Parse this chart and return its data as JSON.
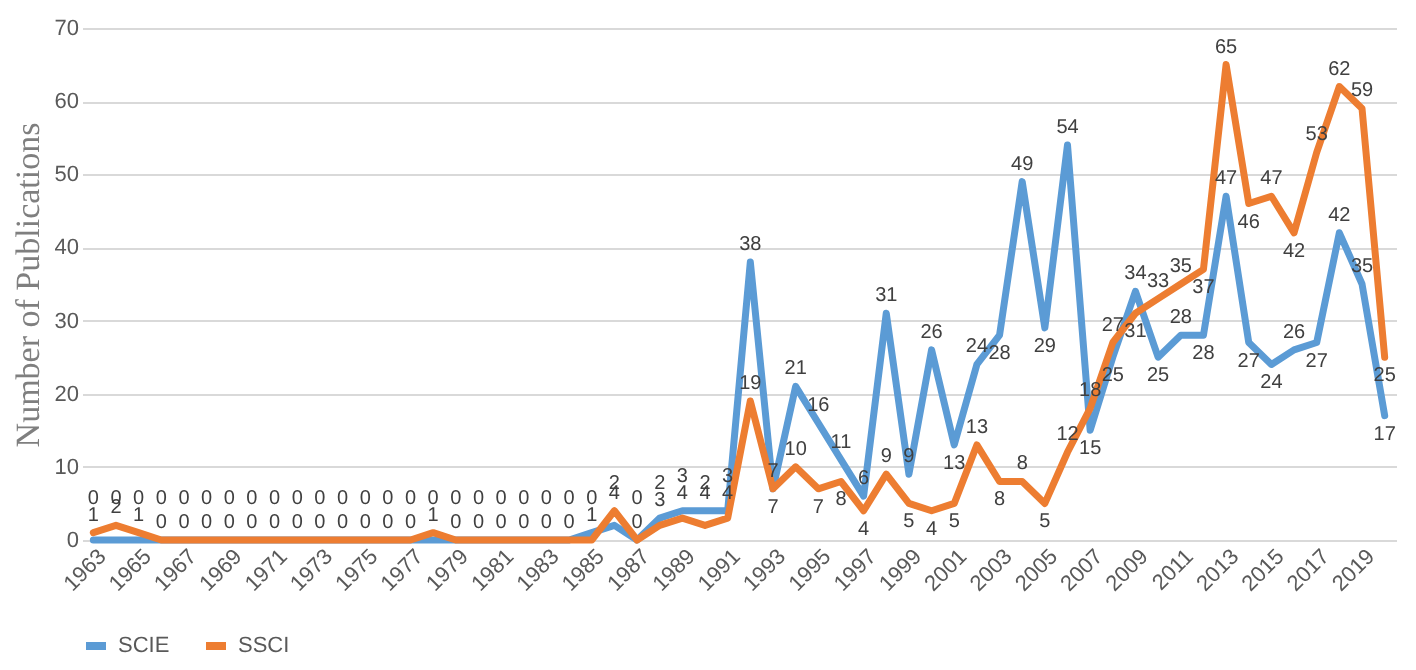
{
  "chart_data": {
    "type": "line",
    "ylabel": "Number of Publications",
    "categories": [
      "1963",
      null,
      "1965",
      null,
      "1967",
      null,
      "1969",
      null,
      "1971",
      null,
      "1973",
      null,
      "1975",
      null,
      "1977",
      null,
      "1979",
      null,
      "1981",
      null,
      "1983",
      null,
      "1985",
      null,
      "1987",
      null,
      "1989",
      null,
      "1991",
      null,
      "1993",
      null,
      "1995",
      null,
      "1997",
      null,
      "1999",
      null,
      "2001",
      null,
      "2003",
      null,
      "2005",
      null,
      "2007",
      null,
      "2009",
      null,
      "2011",
      null,
      "2013",
      null,
      "2015",
      null,
      "2017",
      null,
      "2019",
      null
    ],
    "series": [
      {
        "name": "SCIE",
        "color": "#5b9bd5",
        "values": [
          0,
          0,
          0,
          0,
          0,
          0,
          0,
          0,
          0,
          0,
          0,
          0,
          0,
          0,
          0,
          0,
          0,
          0,
          0,
          0,
          0,
          0,
          1,
          2,
          0,
          3,
          4,
          4,
          4,
          38,
          7,
          21,
          16,
          11,
          6,
          31,
          9,
          26,
          13,
          24,
          28,
          49,
          29,
          54,
          15,
          25,
          34,
          25,
          28,
          28,
          47,
          27,
          24,
          26,
          27,
          42,
          35,
          17
        ]
      },
      {
        "name": "SSCI",
        "color": "#ed7d31",
        "values": [
          1,
          2,
          1,
          0,
          0,
          0,
          0,
          0,
          0,
          0,
          0,
          0,
          0,
          0,
          0,
          1,
          0,
          0,
          0,
          0,
          0,
          0,
          0,
          4,
          0,
          2,
          3,
          2,
          3,
          19,
          7,
          10,
          7,
          8,
          4,
          9,
          5,
          4,
          5,
          13,
          8,
          8,
          5,
          12,
          18,
          27,
          31,
          33,
          35,
          37,
          65,
          46,
          47,
          42,
          53,
          62,
          59,
          25
        ]
      }
    ],
    "ylim": [
      0,
      70
    ],
    "yticks": [
      0,
      10,
      20,
      30,
      40,
      50,
      60,
      70
    ],
    "grid": "y",
    "legend": "bottom",
    "data_labels": true,
    "marker": "none",
    "line_style": "solid"
  }
}
